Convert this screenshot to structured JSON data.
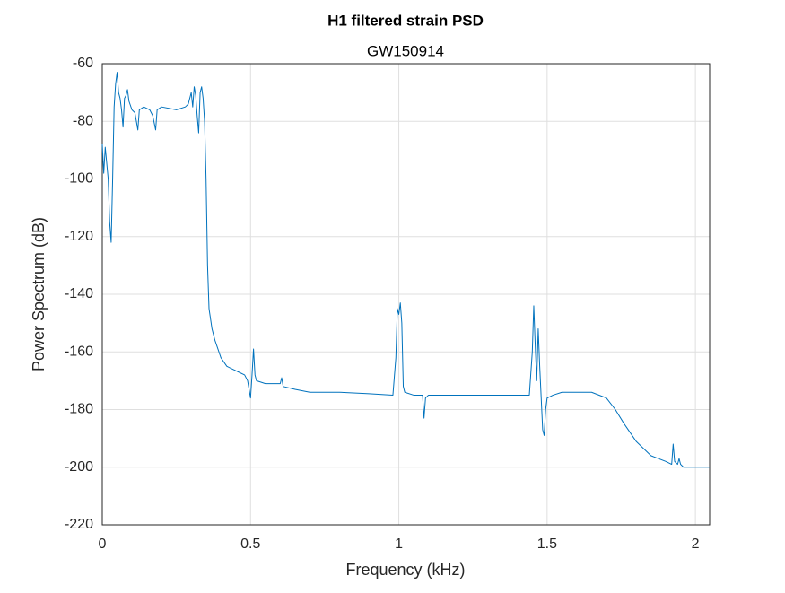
{
  "chart_data": {
    "type": "line",
    "title": "H1 filtered strain PSD",
    "subtitle": "GW150914",
    "xlabel": "Frequency (kHz)",
    "ylabel": "Power Spectrum (dB)",
    "xlim": [
      0,
      2.048
    ],
    "xticks": [
      0,
      0.5,
      1,
      1.5,
      2
    ],
    "ylim": [
      -220,
      -60
    ],
    "yticks": [
      -220,
      -200,
      -180,
      -160,
      -140,
      -120,
      -100,
      -80,
      -60
    ],
    "grid": true,
    "x": [
      0,
      0.005,
      0.01,
      0.02,
      0.025,
      0.03,
      0.035,
      0.04,
      0.045,
      0.05,
      0.055,
      0.06,
      0.065,
      0.07,
      0.075,
      0.08,
      0.085,
      0.09,
      0.1,
      0.11,
      0.12,
      0.125,
      0.14,
      0.16,
      0.17,
      0.18,
      0.185,
      0.2,
      0.25,
      0.28,
      0.29,
      0.3,
      0.305,
      0.31,
      0.315,
      0.32,
      0.325,
      0.33,
      0.335,
      0.34,
      0.345,
      0.35,
      0.355,
      0.36,
      0.37,
      0.38,
      0.4,
      0.42,
      0.44,
      0.46,
      0.48,
      0.49,
      0.5,
      0.505,
      0.51,
      0.515,
      0.52,
      0.55,
      0.6,
      0.605,
      0.61,
      0.65,
      0.7,
      0.8,
      0.9,
      0.98,
      0.99,
      0.995,
      1.0,
      1.005,
      1.01,
      1.015,
      1.02,
      1.05,
      1.08,
      1.085,
      1.09,
      1.1,
      1.2,
      1.3,
      1.4,
      1.44,
      1.45,
      1.455,
      1.46,
      1.465,
      1.47,
      1.475,
      1.48,
      1.485,
      1.49,
      1.495,
      1.5,
      1.52,
      1.55,
      1.6,
      1.65,
      1.7,
      1.73,
      1.76,
      1.8,
      1.85,
      1.9,
      1.92,
      1.925,
      1.93,
      1.94,
      1.945,
      1.95,
      1.96,
      2.0,
      2.048
    ],
    "series": [
      {
        "color": "#0072bd",
        "values": [
          -88,
          -98,
          -89,
          -100,
          -115,
          -122,
          -100,
          -75,
          -67,
          -63,
          -70,
          -72,
          -76,
          -82,
          -72,
          -71,
          -69,
          -73,
          -76,
          -77,
          -83,
          -76,
          -75,
          -76,
          -78,
          -83,
          -76,
          -75,
          -76,
          -75,
          -74,
          -70,
          -75,
          -68,
          -71,
          -78,
          -84,
          -70,
          -68,
          -72,
          -80,
          -100,
          -130,
          -145,
          -152,
          -156,
          -162,
          -165,
          -166,
          -167,
          -168,
          -170,
          -176,
          -168,
          -159,
          -168,
          -170,
          -171,
          -171,
          -169,
          -172,
          -173,
          -174,
          -174,
          -174.5,
          -175,
          -162,
          -145,
          -147,
          -143,
          -150,
          -172,
          -174,
          -175,
          -175,
          -183,
          -176,
          -175,
          -175,
          -175,
          -175,
          -175,
          -160,
          -144,
          -158,
          -170,
          -152,
          -165,
          -176,
          -187,
          -189,
          -180,
          -176,
          -175,
          -174,
          -174,
          -174,
          -176,
          -180,
          -185,
          -191,
          -196,
          -198,
          -199,
          -192,
          -198,
          -199,
          -197,
          -199,
          -200,
          -200,
          -200
        ]
      }
    ]
  }
}
